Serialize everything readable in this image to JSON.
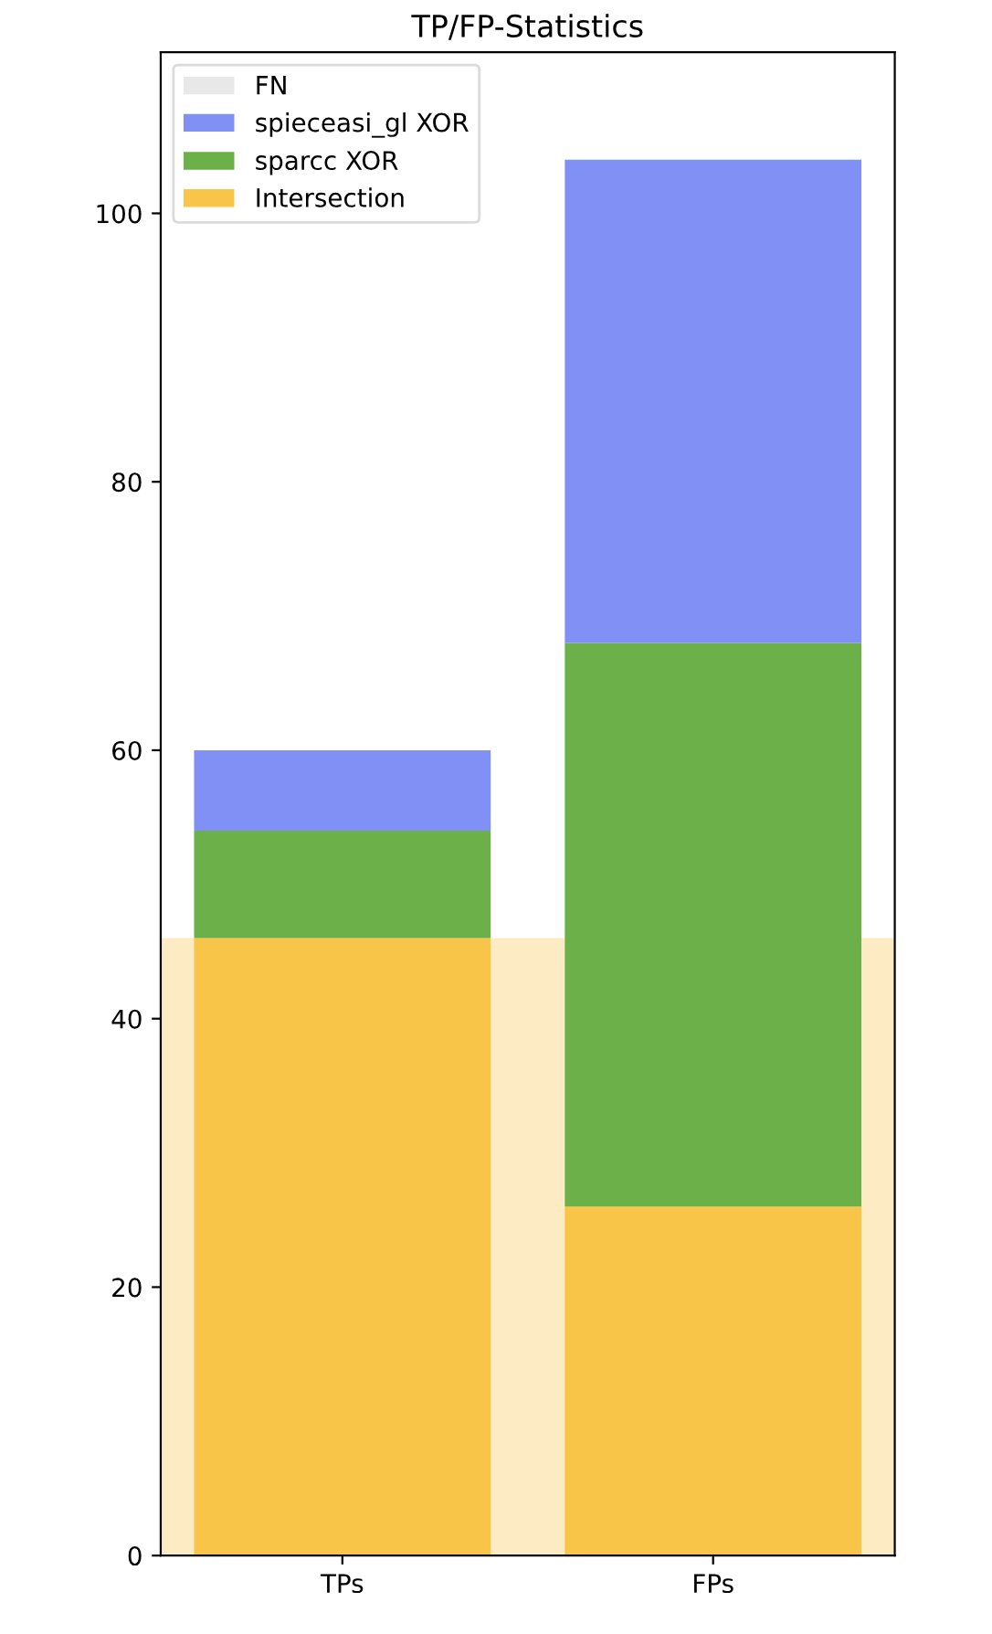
{
  "chart_data": {
    "type": "bar",
    "title": "TP/FP-Statistics",
    "categories": [
      "TPs",
      "FPs"
    ],
    "stacked": true,
    "series": [
      {
        "name": "Intersection",
        "color": "#f9c548",
        "values": [
          46,
          26
        ]
      },
      {
        "name": "sparcc XOR",
        "color": "#6bb048",
        "values": [
          8,
          42
        ]
      },
      {
        "name": "spieceasi_gl XOR",
        "color": "#8090f5",
        "values": [
          6,
          36
        ]
      },
      {
        "name": "FN",
        "color": "#e8e8e8",
        "values": [
          null,
          null
        ]
      }
    ],
    "ylim": [
      0,
      112
    ],
    "yticks": [
      0,
      20,
      40,
      60,
      80,
      100
    ],
    "bands": [
      {
        "axis": "y",
        "from": 0,
        "to": 46,
        "color": "#fdebc4"
      }
    ],
    "legend": "top left",
    "grid": false
  }
}
